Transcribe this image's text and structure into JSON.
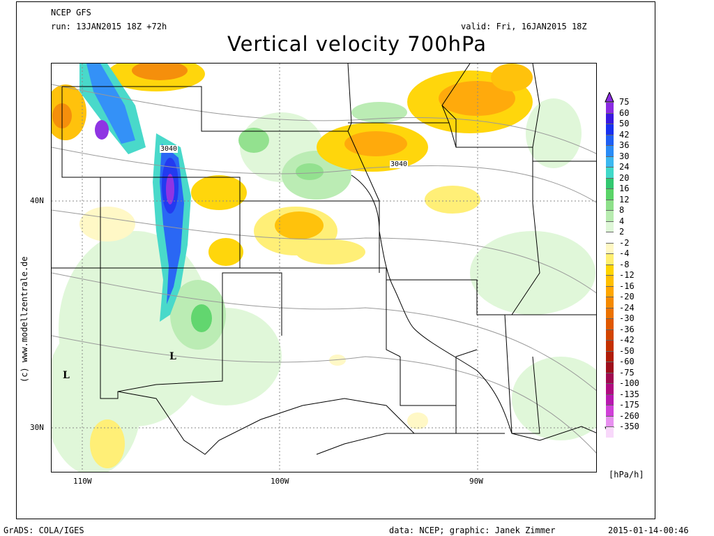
{
  "header": {
    "model": "NCEP GFS",
    "run": "run: 13JAN2015 18Z +72h",
    "valid": "valid: Fri, 16JAN2015 18Z",
    "title": "Vertical velocity 700hPa"
  },
  "axes": {
    "lat_labels": [
      "40N",
      "30N"
    ],
    "lon_labels": [
      "110W",
      "100W",
      "90W"
    ]
  },
  "map": {
    "contour_labels": [
      "3040",
      "3040"
    ],
    "pressure_low_symbol": "L"
  },
  "legend": {
    "unit": "[hPa/h]",
    "levels": [
      "75",
      "60",
      "50",
      "42",
      "36",
      "30",
      "24",
      "20",
      "16",
      "12",
      "8",
      "4",
      "2",
      "-2",
      "-4",
      "-8",
      "-12",
      "-16",
      "-20",
      "-24",
      "-30",
      "-36",
      "-42",
      "-50",
      "-60",
      "-75",
      "-100",
      "-135",
      "-175",
      "-260",
      "-350"
    ],
    "colors": [
      "#8a2be2",
      "#3a18e0",
      "#1830f0",
      "#1f5ff4",
      "#2a8cf7",
      "#3cb8f0",
      "#40d8c8",
      "#32c870",
      "#5ad468",
      "#8ee08a",
      "#b8ecb0",
      "#dff7d8",
      "#ffffff",
      "#fff8c4",
      "#ffef70",
      "#ffd400",
      "#ffbf00",
      "#ffa600",
      "#f58a00",
      "#ec7200",
      "#e05800",
      "#d24400",
      "#c43000",
      "#b01c08",
      "#9e0e1c",
      "#a00a50",
      "#b00a80",
      "#b818b0",
      "#d040d8",
      "#e890f0",
      "#f8d8fa"
    ]
  },
  "footer": {
    "left": "GrADS: COLA/IGES",
    "center": "data: NCEP; graphic: Janek Zimmer",
    "right": "2015-01-14-00:46"
  },
  "copyright": "(c) www.modellzentrale.de"
}
